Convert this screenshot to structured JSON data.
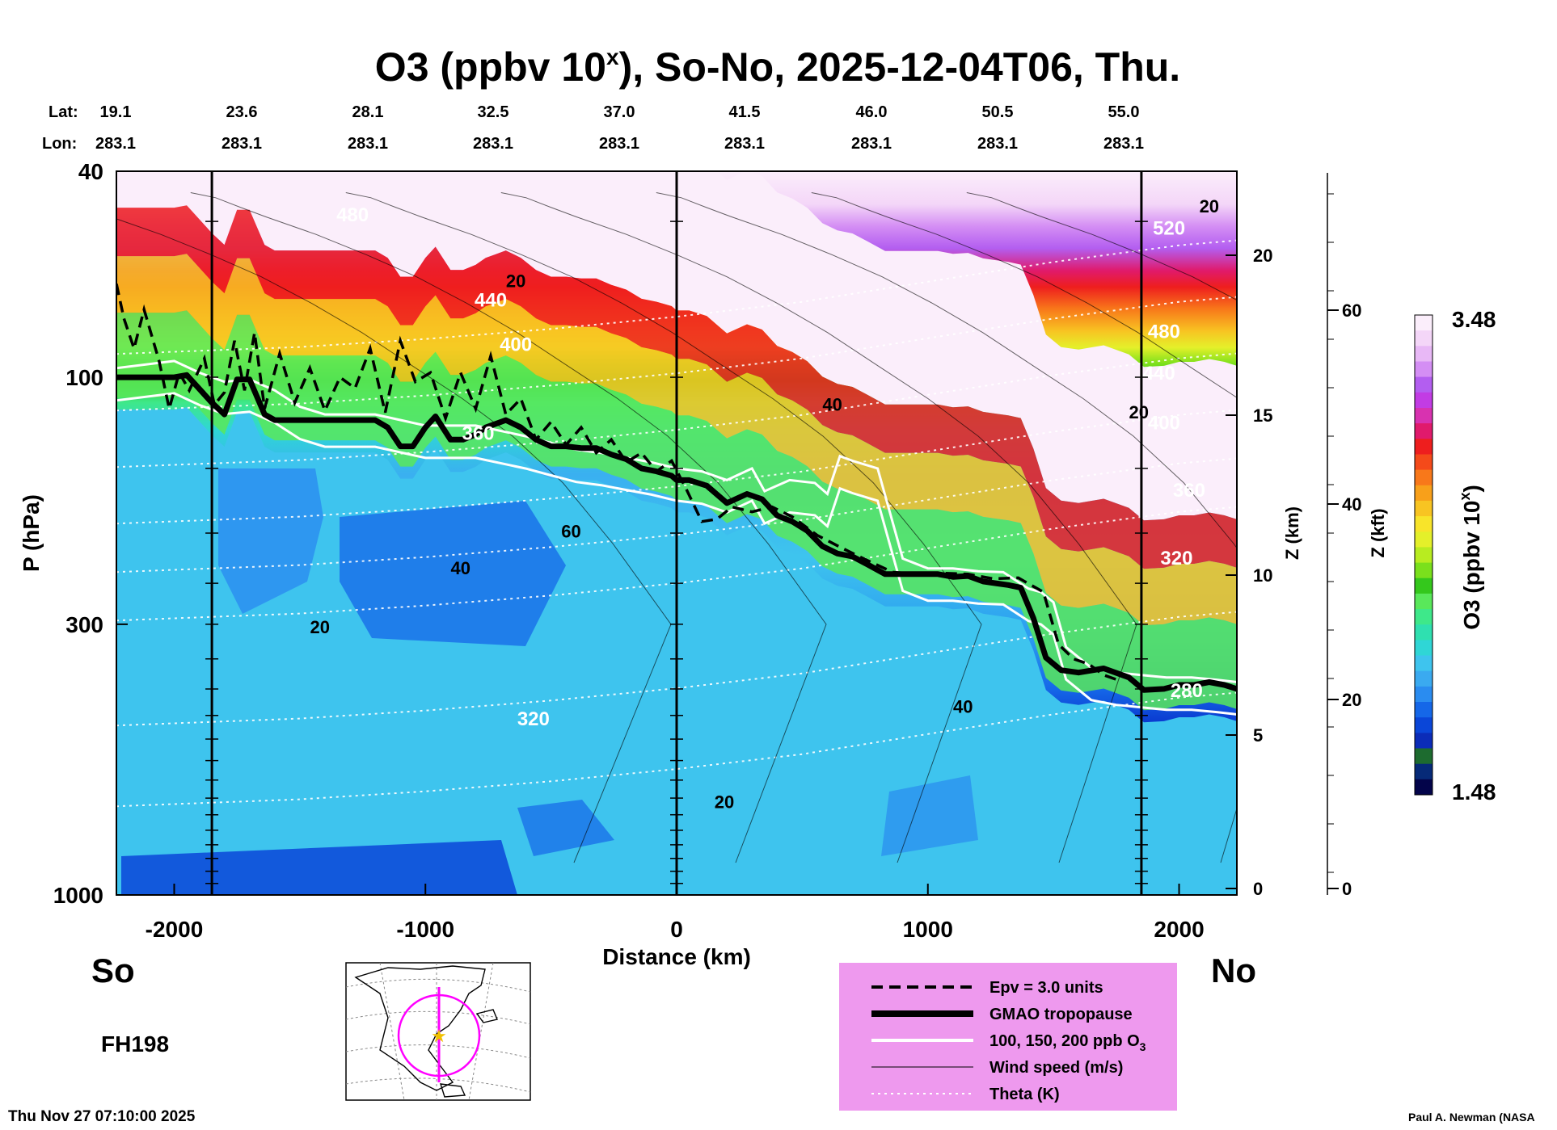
{
  "chart_data": {
    "type": "heatmap",
    "title_main": "O3 (ppbv 10",
    "title_exp": "x",
    "title_rest": "), So-No, 2025-12-04T06, Thu.",
    "xlabel": "Distance (km)",
    "ylabel": "P (hPa)",
    "z_km_label": "Z (km)",
    "z_kft_label": "Z (kft)",
    "x_range": [
      -2230,
      2230
    ],
    "x_ticks": [
      {
        "value": -2000,
        "label": "-2000"
      },
      {
        "value": -1000,
        "label": "-1000"
      },
      {
        "value": 0,
        "label": "0"
      },
      {
        "value": 1000,
        "label": "1000"
      },
      {
        "value": 2000,
        "label": "2000"
      }
    ],
    "y_range_hpa": [
      1000,
      40
    ],
    "y_ticks": [
      {
        "value": 40,
        "label": "40"
      },
      {
        "value": 100,
        "label": "100"
      },
      {
        "value": 300,
        "label": "300"
      },
      {
        "value": 1000,
        "label": "1000"
      }
    ],
    "z_km_ticks": [
      {
        "value": 20,
        "label": "20"
      },
      {
        "value": 15,
        "label": "15"
      },
      {
        "value": 10,
        "label": "10"
      },
      {
        "value": 5,
        "label": "5"
      },
      {
        "value": 0,
        "label": "0"
      }
    ],
    "z_kft_ticks": [
      {
        "value": 60,
        "label": "60"
      },
      {
        "value": 40,
        "label": "40"
      },
      {
        "value": 20,
        "label": "20"
      },
      {
        "value": 0,
        "label": "0"
      }
    ],
    "lat_label": "Lat:",
    "lon_label": "Lon:",
    "stations": [
      {
        "lat": "19.1",
        "lon": "283.1"
      },
      {
        "lat": "23.6",
        "lon": "283.1"
      },
      {
        "lat": "28.1",
        "lon": "283.1"
      },
      {
        "lat": "32.5",
        "lon": "283.1"
      },
      {
        "lat": "37.0",
        "lon": "283.1"
      },
      {
        "lat": "41.5",
        "lon": "283.1"
      },
      {
        "lat": "46.0",
        "lon": "283.1"
      },
      {
        "lat": "50.5",
        "lon": "283.1"
      },
      {
        "lat": "55.0",
        "lon": "283.1"
      }
    ],
    "vertical_lines_km": [
      -1850,
      0,
      1850
    ],
    "colorbar": {
      "label_main": "O3 (ppbv 10",
      "label_exp": "x",
      "label_end": ")",
      "max": "3.48",
      "min": "1.48",
      "colors": [
        "#03044a",
        "#062a78",
        "#1d6b2f",
        "#0b2cb8",
        "#0a46d8",
        "#1567e8",
        "#2a8cf0",
        "#3aaaf0",
        "#3ec4ee",
        "#2fd6d6",
        "#2fe0b0",
        "#3ee88a",
        "#59e85a",
        "#34c81c",
        "#7ae01c",
        "#b8ec20",
        "#e4f02a",
        "#f8e42a",
        "#f8c422",
        "#f8a01a",
        "#f8781a",
        "#f44a1a",
        "#ee1e1e",
        "#e01a6c",
        "#d832b0",
        "#c23ce4",
        "#b35ef0",
        "#d48ef4",
        "#e8b8f6",
        "#f4d6f8",
        "#fbeefb"
      ]
    },
    "theta_labels": [
      {
        "x": -1290,
        "p": 50,
        "text": "480"
      },
      {
        "x": -740,
        "p": 73,
        "text": "440"
      },
      {
        "x": -640,
        "p": 89,
        "text": "400"
      },
      {
        "x": -790,
        "p": 132,
        "text": "360"
      },
      {
        "x": -570,
        "p": 470,
        "text": "320"
      },
      {
        "x": 1960,
        "p": 53,
        "text": "520"
      },
      {
        "x": 1940,
        "p": 84,
        "text": "480"
      },
      {
        "x": 1920,
        "p": 101,
        "text": "440"
      },
      {
        "x": 1940,
        "p": 126,
        "text": "400"
      },
      {
        "x": 2040,
        "p": 170,
        "text": "360"
      },
      {
        "x": 1990,
        "p": 230,
        "text": "320"
      },
      {
        "x": 2030,
        "p": 415,
        "text": "280"
      }
    ],
    "wind_labels": [
      {
        "x": -640,
        "p": 67,
        "text": "20"
      },
      {
        "x": 620,
        "p": 116,
        "text": "40"
      },
      {
        "x": -420,
        "p": 204,
        "text": "60"
      },
      {
        "x": -860,
        "p": 240,
        "text": "40"
      },
      {
        "x": -1420,
        "p": 312,
        "text": "20"
      },
      {
        "x": 1140,
        "p": 445,
        "text": "40"
      },
      {
        "x": 190,
        "p": 680,
        "text": "20"
      },
      {
        "x": 1840,
        "p": 120,
        "text": "20"
      },
      {
        "x": 2120,
        "p": 48,
        "text": "20"
      }
    ],
    "series": [
      {
        "name": "GMAO tropopause",
        "x": [
          -2230,
          -2100,
          -2000,
          -1950,
          -1850,
          -1800,
          -1750,
          -1700,
          -1640,
          -1600,
          -1560,
          -1500,
          -1440,
          -1360,
          -1260,
          -1200,
          -1150,
          -1100,
          -1050,
          -1000,
          -960,
          -900,
          -850,
          -800,
          -760,
          -720,
          -680,
          -620,
          -560,
          -500,
          -440,
          -380,
          -320,
          -260,
          -200,
          -140,
          -80,
          -20,
          0,
          50,
          120,
          200,
          280,
          340,
          400,
          460,
          520,
          580,
          640,
          700,
          760,
          830,
          900,
          960,
          1040,
          1100,
          1160,
          1220,
          1270,
          1320,
          1370,
          1420,
          1470,
          1530,
          1600,
          1700,
          1800,
          1860,
          1940,
          2000,
          2060,
          2120,
          2180,
          2230
        ],
        "p": [
          100,
          100,
          100,
          99,
          112,
          118,
          101,
          101,
          118,
          121,
          121,
          121,
          121,
          121,
          121,
          121,
          125,
          136,
          136,
          125,
          119,
          132,
          132,
          129,
          125,
          123,
          121,
          125,
          132,
          136,
          136,
          137,
          137,
          141,
          144,
          150,
          152,
          155,
          158,
          158,
          162,
          175,
          168,
          172,
          185,
          190,
          198,
          212,
          219,
          222,
          230,
          240,
          240,
          240,
          240,
          243,
          242,
          248,
          250,
          252,
          255,
          292,
          348,
          368,
          372,
          365,
          380,
          402,
          400,
          393,
          393,
          388,
          393,
          400
        ]
      },
      {
        "name": "Epv = 3.0 units",
        "x": [
          -2230,
          -2200,
          -2160,
          -2120,
          -2060,
          -2020,
          -1980,
          -1940,
          -1880,
          -1840,
          -1800,
          -1760,
          -1720,
          -1680,
          -1640,
          -1580,
          -1520,
          -1460,
          -1400,
          -1340,
          -1280,
          -1220,
          -1160,
          -1100,
          -1040,
          -980,
          -920,
          -860,
          -800,
          -740,
          -680,
          -620,
          -560,
          -500,
          -440,
          -380,
          -320,
          -260,
          -200,
          -140,
          -80,
          -20,
          40,
          100,
          160,
          220,
          300,
          380,
          460,
          560,
          660,
          760,
          860,
          960,
          1060,
          1160,
          1260,
          1360,
          1460,
          1520,
          1580,
          1640,
          1700,
          1760
        ],
        "p": [
          66,
          77,
          88,
          74,
          93,
          115,
          98,
          106,
          92,
          113,
          107,
          85,
          106,
          82,
          115,
          90,
          112,
          96,
          116,
          100,
          105,
          88,
          117,
          85,
          102,
          98,
          120,
          98,
          115,
          91,
          118,
          110,
          132,
          122,
          135,
          125,
          140,
          132,
          146,
          140,
          152,
          145,
          165,
          190,
          188,
          178,
          182,
          178,
          186,
          202,
          214,
          226,
          238,
          240,
          239,
          240,
          245,
          244,
          260,
          328,
          350,
          358,
          376,
          385
        ]
      },
      {
        "name": "100, 150, 200 ppb O3",
        "x": [
          -2230,
          -2000,
          -1900,
          -1800,
          -1700,
          -1600,
          -1500,
          -1400,
          -1200,
          -1000,
          -800,
          -600,
          -500,
          -400,
          -300,
          -200,
          -100,
          0,
          100,
          200,
          300,
          350,
          450,
          550,
          600,
          650,
          700,
          800,
          900,
          1000,
          1100,
          1200,
          1300,
          1400,
          1450,
          1500,
          1550,
          1650,
          1750,
          1850,
          1950,
          2050,
          2150,
          2230
        ],
        "p": [
          96,
          93,
          98,
          102,
          101,
          106,
          114,
          118,
          118,
          124,
          124,
          130,
          134,
          138,
          140,
          143,
          146,
          150,
          152,
          158,
          150,
          166,
          158,
          160,
          168,
          142,
          145,
          150,
          224,
          234,
          234,
          237,
          238,
          256,
          260,
          272,
          332,
          364,
          372,
          376,
          380,
          380,
          384,
          388
        ]
      },
      {
        "name": "Wind speed (m/s)",
        "x": [
          -300,
          -200,
          -100,
          0,
          200,
          400,
          600,
          800,
          1000,
          1200,
          1400,
          1600,
          1800,
          2000,
          2230
        ],
        "p": [
          44,
          45,
          47,
          49,
          53,
          58,
          64,
          72,
          82,
          95,
          110,
          130,
          160,
          210,
          300
        ]
      },
      {
        "name": "Theta (K)",
        "x": [
          -2230,
          -1500,
          -1000,
          -500,
          0,
          500,
          1000,
          1500,
          2000,
          2230
        ],
        "p": [
          295,
          286,
          276,
          264,
          250,
          234,
          214,
          196,
          182,
          178
        ]
      }
    ],
    "legend": [
      {
        "style": "dashed",
        "label": "Epv = 3.0 units"
      },
      {
        "style": "thick",
        "label": "GMAO tropopause"
      },
      {
        "style": "white",
        "label": "100, 150, 200 ppb O"
      },
      {
        "style": "thin",
        "label": "Wind speed (m/s)"
      },
      {
        "style": "dotted",
        "label": "Theta (K)"
      }
    ],
    "legend_subscript": "3"
  },
  "labels": {
    "south": "So",
    "north": "No",
    "forecast_hour": "FH198",
    "timestamp": "Thu Nov 27 07:10:00 2025",
    "credit": "Paul A. Newman (NASA"
  }
}
